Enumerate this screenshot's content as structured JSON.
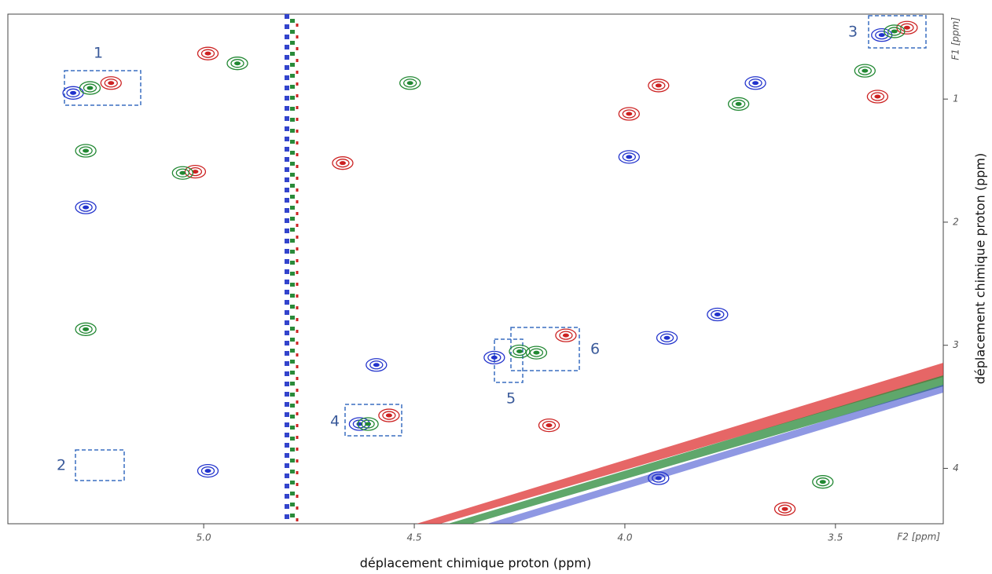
{
  "chart_data": {
    "type": "contour2d",
    "x_label": "déplacement chimique proton (ppm)",
    "y_label": "déplacement chimique proton (ppm)",
    "x_axis_name": "F2 [ppm]",
    "y_axis_name": "F1 [ppm]",
    "xlim": [
      5.465,
      3.244
    ],
    "ylim": [
      0.31,
      4.45
    ],
    "xticks": [
      {
        "value": 5.0,
        "label": "5.0"
      },
      {
        "value": 4.5,
        "label": "4.5"
      },
      {
        "value": 4.0,
        "label": "4.0"
      },
      {
        "value": 3.5,
        "label": "3.5"
      }
    ],
    "yticks": [
      1,
      2,
      3,
      4
    ],
    "annotations": [
      "1",
      "2",
      "3",
      "4",
      "5",
      "6"
    ],
    "series": [
      {
        "color": "#cc2222",
        "x": [
          5.22,
          4.99,
          5.02,
          4.67,
          4.14,
          4.56,
          3.33,
          3.4,
          4.18,
          3.99,
          3.92,
          3.62
        ],
        "y": [
          0.87,
          0.63,
          1.59,
          1.52,
          2.92,
          3.57,
          0.42,
          0.98,
          3.65,
          1.12,
          0.89,
          4.33
        ]
      },
      {
        "color": "#2233cc",
        "x": [
          5.31,
          5.28,
          4.63,
          4.59,
          4.31,
          3.99,
          3.69,
          3.39,
          3.9,
          3.78,
          3.92,
          4.99
        ],
        "y": [
          0.95,
          1.88,
          3.64,
          3.16,
          3.1,
          1.47,
          0.87,
          0.48,
          2.94,
          2.75,
          4.08,
          4.02
        ]
      },
      {
        "color": "#228833",
        "x": [
          5.27,
          5.28,
          5.28,
          4.51,
          4.25,
          4.21,
          4.61,
          3.36,
          3.43,
          3.73,
          3.53,
          5.05,
          4.92
        ],
        "y": [
          0.91,
          1.42,
          2.87,
          0.87,
          3.05,
          3.06,
          3.64,
          0.45,
          0.77,
          1.04,
          4.11,
          1.6,
          0.71
        ]
      }
    ]
  }
}
